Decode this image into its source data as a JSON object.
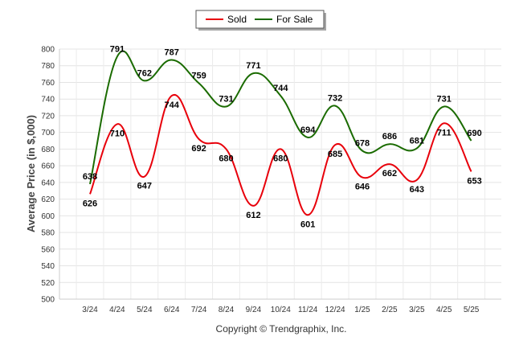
{
  "chart_data": {
    "type": "line",
    "categories": [
      "3/24",
      "4/24",
      "5/24",
      "6/24",
      "7/24",
      "8/24",
      "9/24",
      "10/24",
      "11/24",
      "12/24",
      "1/25",
      "2/25",
      "3/25",
      "4/25",
      "5/25"
    ],
    "series": [
      {
        "name": "Sold",
        "color": "#e8000b",
        "values": [
          626,
          710,
          647,
          744,
          692,
          680,
          612,
          680,
          601,
          685,
          646,
          662,
          643,
          711,
          653
        ]
      },
      {
        "name": "For Sale",
        "color": "#1a6b00",
        "values": [
          638,
          791,
          762,
          787,
          759,
          731,
          771,
          744,
          694,
          732,
          678,
          686,
          681,
          731,
          690
        ]
      }
    ],
    "ylabel": "Average Price (in $,000)",
    "xlabel": "",
    "ylim": [
      500,
      800
    ],
    "yticks": [
      500,
      520,
      540,
      560,
      580,
      600,
      620,
      640,
      660,
      680,
      700,
      720,
      740,
      760,
      780,
      800
    ],
    "grid": true,
    "legend": "top-center",
    "copyright": "Copyright © Trendgraphix, Inc."
  }
}
